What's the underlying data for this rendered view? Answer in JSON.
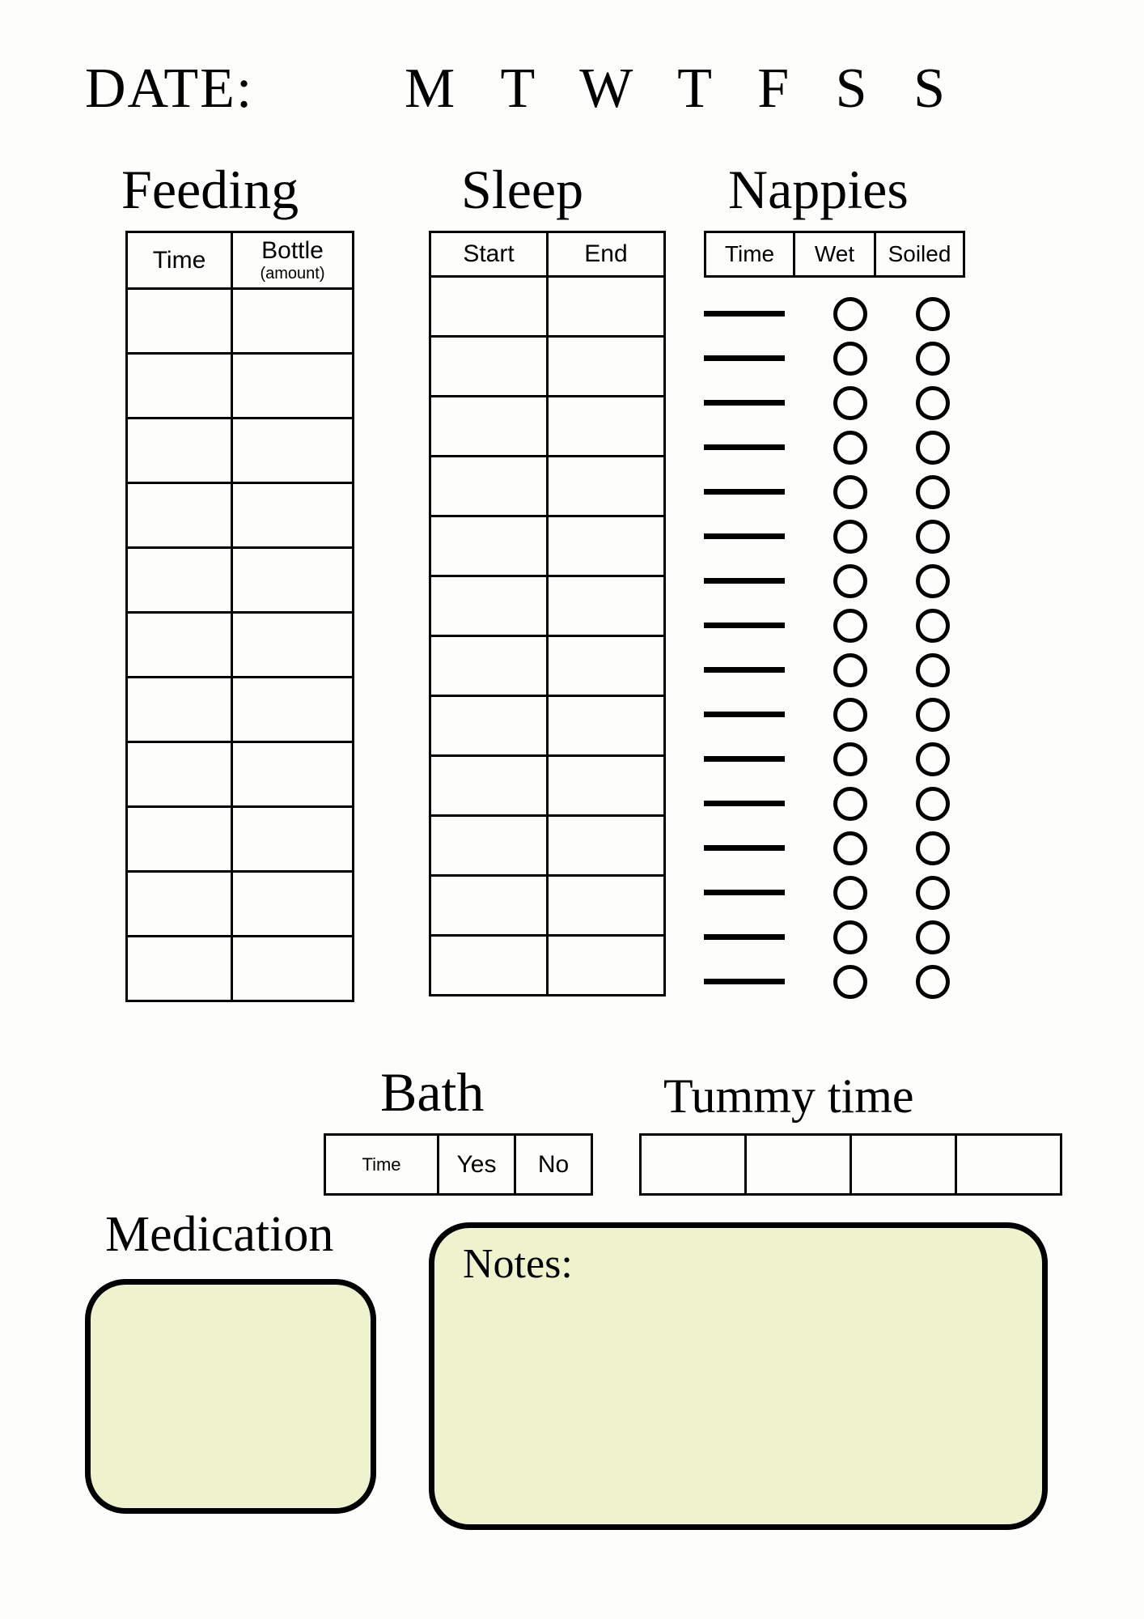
{
  "header": {
    "date_label": "DATE:",
    "weekdays": "M T W T F S S"
  },
  "feeding": {
    "title": "Feeding",
    "col_time": "Time",
    "col_bottle": "Bottle",
    "col_bottle_sub": "(amount)",
    "rows": 11
  },
  "sleep": {
    "title": "Sleep",
    "col_start": "Start",
    "col_end": "End",
    "rows": 12
  },
  "nappies": {
    "title": "Nappies",
    "col_time": "Time",
    "col_wet": "Wet",
    "col_soiled": "Soiled",
    "rows": 16
  },
  "bath": {
    "title": "Bath",
    "col_time": "Time",
    "col_yes": "Yes",
    "col_no": "No"
  },
  "tummy": {
    "title": "Tummy time",
    "boxes": 4
  },
  "medication": {
    "title": "Medication"
  },
  "notes": {
    "label": "Notes:"
  },
  "style": {
    "bg": "#fdfdfb",
    "ink": "#000000",
    "box_fill": "#eef2cd",
    "border_w": 3,
    "round_border_w": 7,
    "round_radius": 50,
    "circle_diameter": 42,
    "circle_border": 5,
    "line_w": 100,
    "line_h": 7,
    "serif_font": "Georgia, 'Times New Roman', serif",
    "sans_font": "Arial, Helvetica, sans-serif",
    "title_fontsize": 68,
    "header_fontsize": 70
  }
}
